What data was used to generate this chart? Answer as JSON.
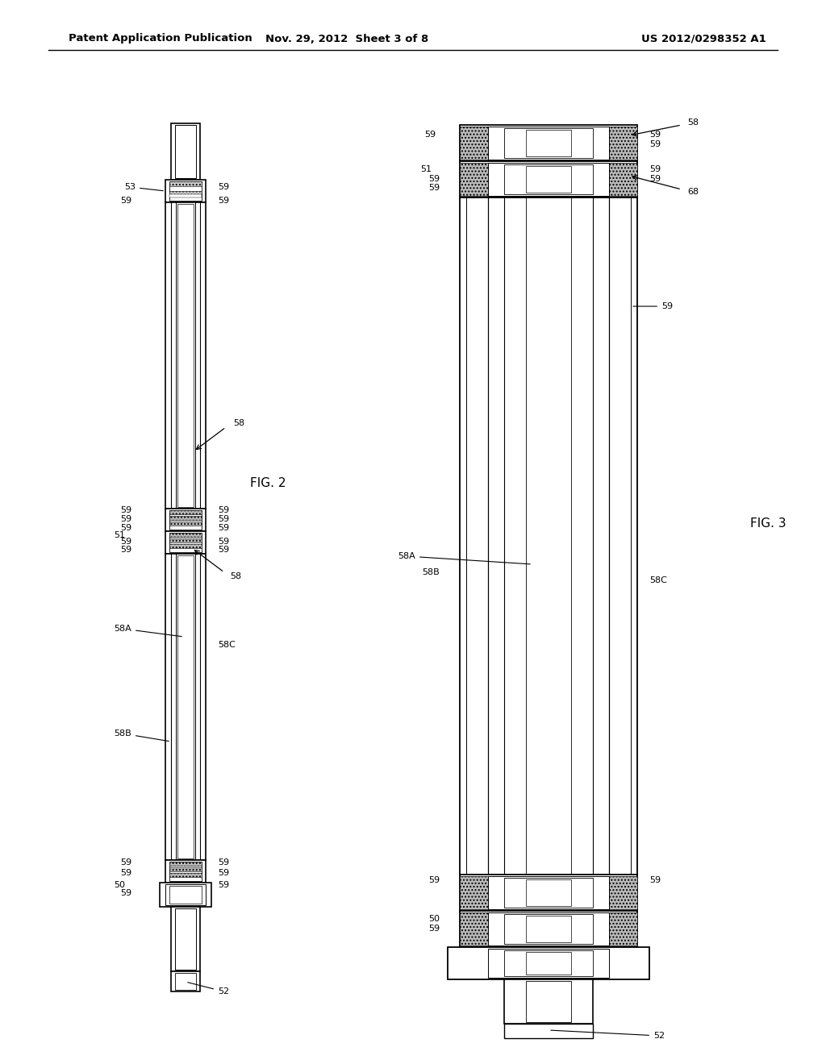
{
  "background_color": "#ffffff",
  "header_left": "Patent Application Publication",
  "header_center": "Nov. 29, 2012  Sheet 3 of 8",
  "header_right": "US 2012/0298352 A1",
  "fig2_label": "FIG. 2",
  "fig3_label": "FIG. 3",
  "text_color": "#000000",
  "line_color": "#000000"
}
